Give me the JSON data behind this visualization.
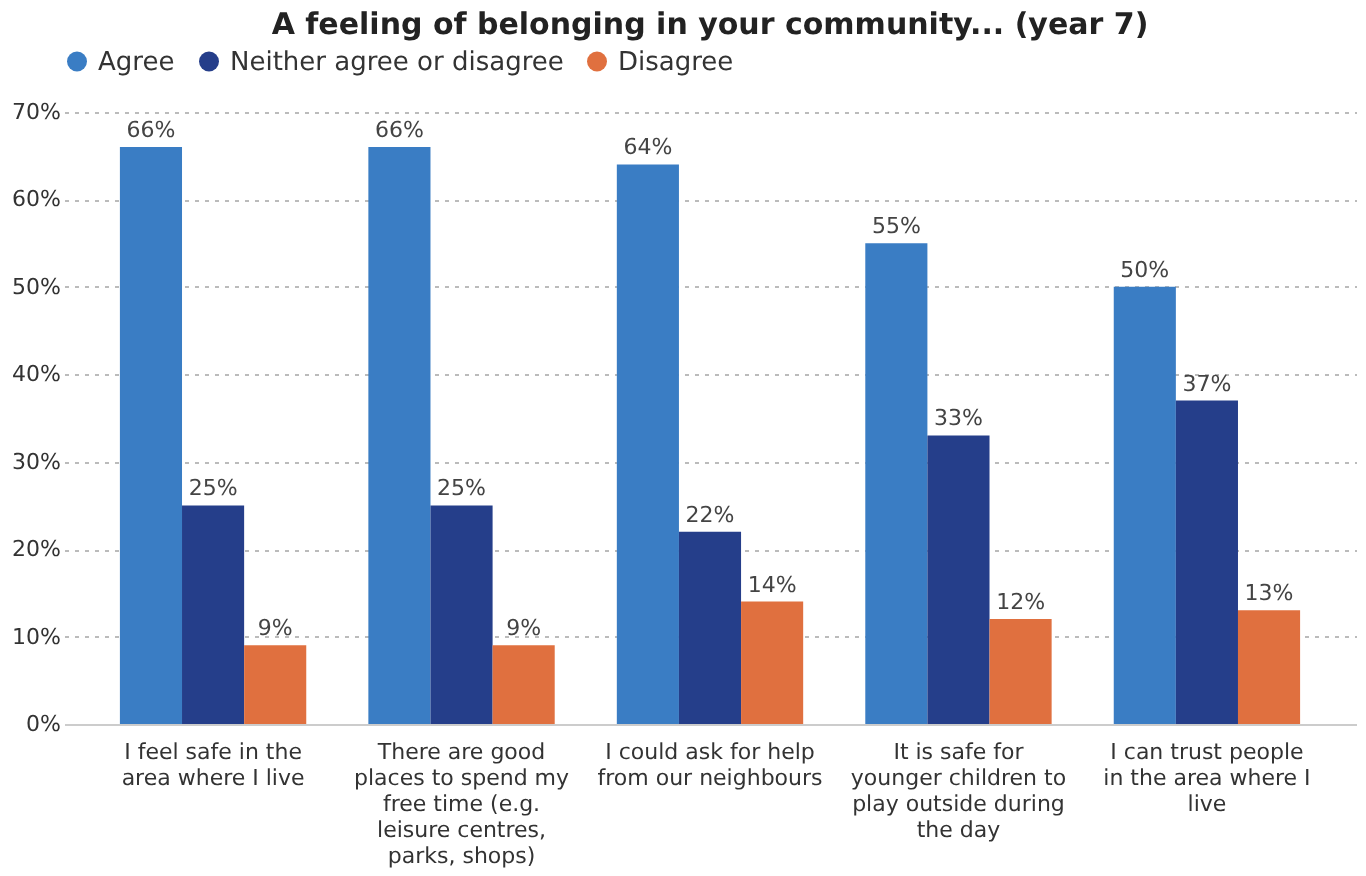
{
  "chart_data": {
    "type": "bar",
    "title": "A feeling of belonging in your community... (year 7)",
    "categories": [
      "I feel safe in the area where I live",
      "There are good places to spend my free time (e.g. leisure centres, parks, shops)",
      "I could ask for help from our neighbours",
      "It is safe for younger children to play outside during the day",
      "I can trust people in the area where I live"
    ],
    "series": [
      {
        "name": "Agree",
        "color": "#3a7dc4",
        "values": [
          66,
          66,
          64,
          55,
          50
        ],
        "value_labels": [
          "66%",
          "66%",
          "64%",
          "55%",
          "50%"
        ]
      },
      {
        "name": "Neither agree or disagree",
        "color": "#253e8a",
        "values": [
          25,
          25,
          22,
          33,
          37
        ],
        "value_labels": [
          "25%",
          "25%",
          "22%",
          "33%",
          "37%"
        ]
      },
      {
        "name": "Disagree",
        "color": "#e0703f",
        "values": [
          9,
          9,
          14,
          12,
          13
        ],
        "value_labels": [
          "9%",
          "9%",
          "14%",
          "12%",
          "13%"
        ]
      }
    ],
    "ylim": [
      0,
      70
    ],
    "yticks": [
      {
        "value": 0,
        "label": "0%"
      },
      {
        "value": 10,
        "label": "10%"
      },
      {
        "value": 20,
        "label": "20%"
      },
      {
        "value": 30,
        "label": "30%"
      },
      {
        "value": 40,
        "label": "40%"
      },
      {
        "value": 50,
        "label": "50%"
      },
      {
        "value": 60,
        "label": "60%"
      },
      {
        "value": 70,
        "label": "70%"
      }
    ],
    "grid": "y",
    "legend": "top left"
  }
}
